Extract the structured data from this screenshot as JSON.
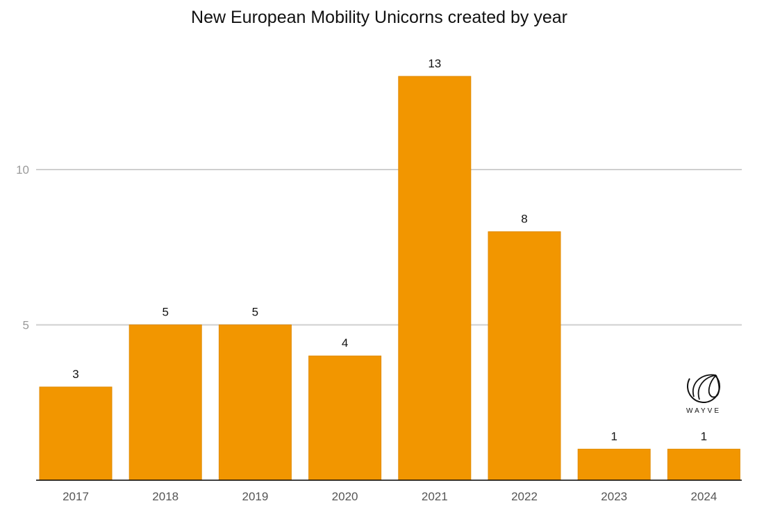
{
  "chart_data": {
    "type": "bar",
    "title": "New European Mobility Unicorns created by year",
    "xlabel": "",
    "ylabel": "",
    "categories": [
      "2017",
      "2018",
      "2019",
      "2020",
      "2021",
      "2022",
      "2023",
      "2024"
    ],
    "values": [
      3,
      5,
      5,
      4,
      13,
      8,
      1,
      1
    ],
    "ylim": [
      0,
      13
    ],
    "yticks": [
      5,
      10
    ],
    "grid": true,
    "legend": "none",
    "bar_color": "#F29600",
    "data_labels": true
  },
  "logo": {
    "text": "WAYVE"
  }
}
